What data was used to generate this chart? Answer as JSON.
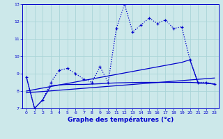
{
  "xlabel": "Graphe des températures (°c)",
  "bg_color": "#cce8ea",
  "grid_color": "#aad4d8",
  "line_color": "#0000cc",
  "xlim": [
    -0.5,
    23.5
  ],
  "ylim": [
    7,
    13
  ],
  "xticks": [
    0,
    1,
    2,
    3,
    4,
    5,
    6,
    7,
    8,
    9,
    10,
    11,
    12,
    13,
    14,
    15,
    16,
    17,
    18,
    19,
    20,
    21,
    22,
    23
  ],
  "yticks": [
    7,
    8,
    9,
    10,
    11,
    12,
    13
  ],
  "main_x": [
    0,
    1,
    2,
    3,
    4,
    5,
    6,
    7,
    8,
    9,
    10,
    11,
    12,
    13,
    14,
    15,
    16,
    17,
    18,
    19,
    20,
    21,
    22,
    23
  ],
  "main_y": [
    8.8,
    7.0,
    7.5,
    8.5,
    9.2,
    9.3,
    9.0,
    8.7,
    8.5,
    9.4,
    8.5,
    11.6,
    13.0,
    11.4,
    11.8,
    12.2,
    11.9,
    12.1,
    11.6,
    11.7,
    9.8,
    8.5,
    8.5,
    8.4
  ],
  "line2_x": [
    0,
    1,
    2,
    3,
    4,
    5,
    6,
    7,
    8,
    9,
    10,
    11,
    12,
    13,
    14,
    15,
    16,
    17,
    18,
    19,
    20,
    21,
    22,
    23
  ],
  "line2_y": [
    8.8,
    7.0,
    7.5,
    8.3,
    8.35,
    8.38,
    8.38,
    8.38,
    8.4,
    8.42,
    8.45,
    8.47,
    8.48,
    8.49,
    8.5,
    8.5,
    8.5,
    8.5,
    8.5,
    8.5,
    8.5,
    8.48,
    8.46,
    8.4
  ],
  "line3_x": [
    0,
    23
  ],
  "line3_y": [
    7.9,
    8.75
  ],
  "line4_x": [
    0,
    19,
    20,
    21,
    22,
    23
  ],
  "line4_y": [
    8.0,
    9.65,
    9.8,
    8.45,
    8.45,
    8.4
  ]
}
